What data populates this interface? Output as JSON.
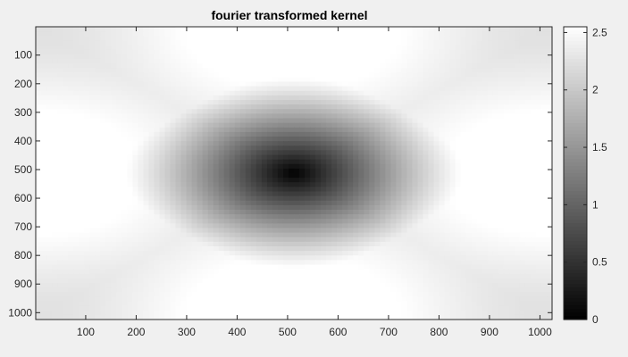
{
  "chart_data": {
    "type": "heatmap",
    "title": "fourier transformed kernel",
    "xlabel": "",
    "ylabel": "",
    "xlim": [
      1,
      1024
    ],
    "ylim": [
      1,
      1024
    ],
    "y_direction": "reverse",
    "x_ticks": [
      100,
      200,
      300,
      400,
      500,
      600,
      700,
      800,
      900,
      1000
    ],
    "y_ticks": [
      100,
      200,
      300,
      400,
      500,
      600,
      700,
      800,
      900,
      1000
    ],
    "colormap": "gray",
    "colorbar": {
      "clim": [
        0,
        2.55
      ],
      "ticks": [
        0,
        0.5,
        1,
        1.5,
        2,
        2.5
      ],
      "location": "right"
    },
    "field": {
      "description_type": "smooth 2D field: dark minimum near center, bright maxima at mid-left/right edges and top/bottom center",
      "minimum": {
        "x": 512,
        "y": 512,
        "value": 0
      },
      "maxima": [
        {
          "x": 1,
          "y": 512,
          "value": 2.55
        },
        {
          "x": 1024,
          "y": 512,
          "value": 2.55
        },
        {
          "x": 512,
          "y": 1,
          "value": 2.55
        },
        {
          "x": 512,
          "y": 1024,
          "value": 2.55
        }
      ],
      "corner_value": 2.25
    },
    "grid": false
  }
}
